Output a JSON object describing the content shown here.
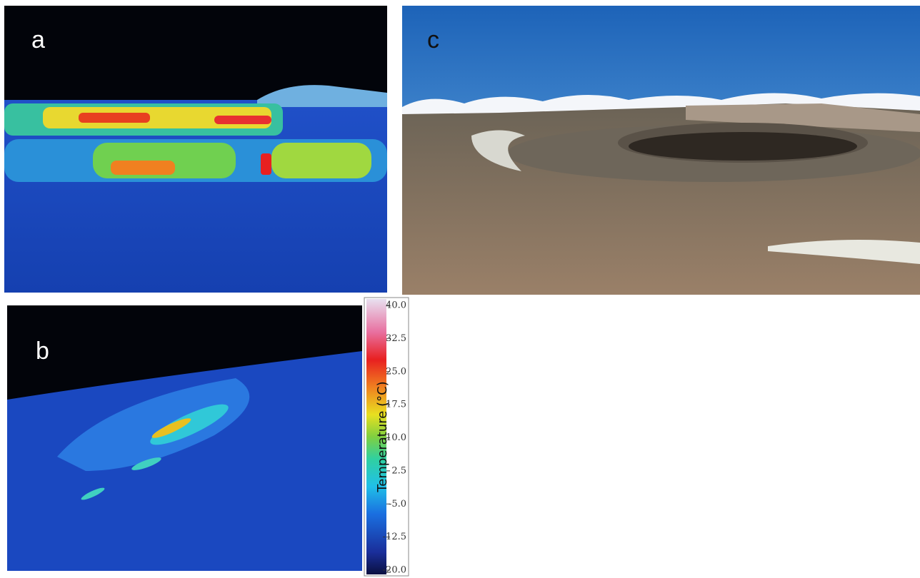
{
  "panels": [
    {
      "label": "a"
    },
    {
      "label": "b"
    },
    {
      "label": "c"
    }
  ],
  "chart_data": {
    "type": "colorbar",
    "label": "Temperature (°C)",
    "ylim": [
      -20,
      40
    ],
    "yticks": [
      {
        "value": 40,
        "label": "40.0"
      },
      {
        "value": 32.5,
        "label": "32.5"
      },
      {
        "value": 25,
        "label": "25.0"
      },
      {
        "value": 17.5,
        "label": "17.5"
      },
      {
        "value": 10,
        "label": "10.0"
      },
      {
        "value": 2.5,
        "label": "2.5"
      },
      {
        "value": -5,
        "label": "-5.0"
      },
      {
        "value": -12.5,
        "label": "-12.5"
      },
      {
        "value": -20,
        "label": "-20.0"
      }
    ]
  }
}
